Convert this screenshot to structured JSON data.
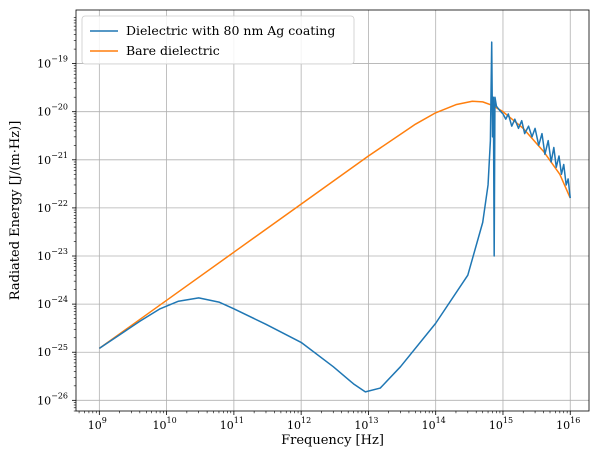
{
  "chart_data": {
    "type": "line",
    "xlabel": "Frequency [Hz]",
    "ylabel": "Radiated Energy [J/(m·Hz)]",
    "xscale": "log",
    "yscale": "log",
    "xlim": [
      450000000.0,
      1.9e+16
    ],
    "ylim": [
      6e-27,
      1.3e-18
    ],
    "xticks": [
      {
        "base": "10",
        "exp": "9",
        "value": 1000000000.0
      },
      {
        "base": "10",
        "exp": "10",
        "value": 10000000000.0
      },
      {
        "base": "10",
        "exp": "11",
        "value": 100000000000.0
      },
      {
        "base": "10",
        "exp": "12",
        "value": 1000000000000.0
      },
      {
        "base": "10",
        "exp": "13",
        "value": 10000000000000.0
      },
      {
        "base": "10",
        "exp": "14",
        "value": 100000000000000.0
      },
      {
        "base": "10",
        "exp": "15",
        "value": 1000000000000000.0
      },
      {
        "base": "10",
        "exp": "16",
        "value": 1e+16
      }
    ],
    "yticks": [
      {
        "base": "10",
        "exp": "−26",
        "value": 1e-26
      },
      {
        "base": "10",
        "exp": "−25",
        "value": 1e-25
      },
      {
        "base": "10",
        "exp": "−24",
        "value": 1e-24
      },
      {
        "base": "10",
        "exp": "−23",
        "value": 1e-23
      },
      {
        "base": "10",
        "exp": "−22",
        "value": 1e-22
      },
      {
        "base": "10",
        "exp": "−21",
        "value": 1e-21
      },
      {
        "base": "10",
        "exp": "−20",
        "value": 1e-20
      },
      {
        "base": "10",
        "exp": "−19",
        "value": 1e-19
      }
    ],
    "grid": true,
    "legend_position": "top-left",
    "series": [
      {
        "name": "Dielectric with 80 nm Ag coating",
        "color": "#1f77b4",
        "x": [
          1000000000.0,
          2000000000.0,
          4000000000.0,
          8000000000.0,
          15000000000.0,
          30000000000.0,
          60000000000.0,
          100000000000.0,
          300000000000.0,
          1000000000000.0,
          3000000000000.0,
          6000000000000.0,
          9000000000000.0,
          15000000000000.0,
          30000000000000.0,
          100000000000000.0,
          300000000000000.0,
          500000000000000.0,
          600000000000000.0,
          650000000000000.0,
          680000000000000.0,
          700000000000000.0,
          720000000000000.0,
          740000000000000.0,
          760000000000000.0,
          800000000000000.0,
          900000000000000.0,
          1000000000000000.0,
          1100000000000000.0,
          1200000000000000.0,
          1350000000000000.0,
          1500000000000000.0,
          1700000000000000.0,
          1900000000000000.0,
          2100000000000000.0,
          2400000000000000.0,
          2700000000000000.0,
          3000000000000000.0,
          3400000000000000.0,
          3800000000000000.0,
          4200000000000000.0,
          4700000000000000.0,
          5200000000000000.0,
          5700000000000000.0,
          6200000000000000.0,
          6800000000000000.0,
          7400000000000000.0,
          8000000000000000.0,
          8700000000000000.0,
          9300000000000000.0,
          1e+16
        ],
        "y": [
          1.2e-25,
          2.3e-25,
          4.4e-25,
          8e-25,
          1.15e-24,
          1.35e-24,
          1.1e-24,
          8e-25,
          3.8e-25,
          1.6e-25,
          5e-26,
          2.2e-26,
          1.5e-26,
          1.8e-26,
          5e-26,
          4e-25,
          4e-24,
          5e-23,
          3e-22,
          2.5e-21,
          2.8e-19,
          3e-21,
          2e-20,
          1e-23,
          2e-20,
          1.3e-20,
          1.05e-20,
          9e-21,
          7e-21,
          9e-21,
          5e-21,
          7e-21,
          4.5e-21,
          6.5e-21,
          3.5e-21,
          5e-21,
          3e-21,
          4.5e-21,
          2e-21,
          3.5e-21,
          1.3e-21,
          2.5e-21,
          9e-22,
          1.8e-21,
          7e-22,
          1.2e-21,
          5e-22,
          8e-22,
          3e-22,
          4e-22,
          1.6e-22
        ]
      },
      {
        "name": "Bare dielectric",
        "color": "#ff7f0e",
        "x": [
          1000000000.0,
          10000000000.0,
          100000000000.0,
          1000000000000.0,
          10000000000000.0,
          50000000000000.0,
          100000000000000.0,
          200000000000000.0,
          350000000000000.0,
          500000000000000.0,
          700000000000000.0,
          1000000000000000.0,
          2000000000000000.0,
          4000000000000000.0,
          7000000000000000.0,
          1e+16
        ],
        "y": [
          1.2e-25,
          1.2e-24,
          1.2e-23,
          1.2e-22,
          1.2e-21,
          5.5e-21,
          9.5e-21,
          1.4e-20,
          1.65e-20,
          1.6e-20,
          1.35e-20,
          1e-20,
          4.5e-21,
          1.5e-21,
          5e-22,
          1.6e-22
        ]
      }
    ]
  }
}
